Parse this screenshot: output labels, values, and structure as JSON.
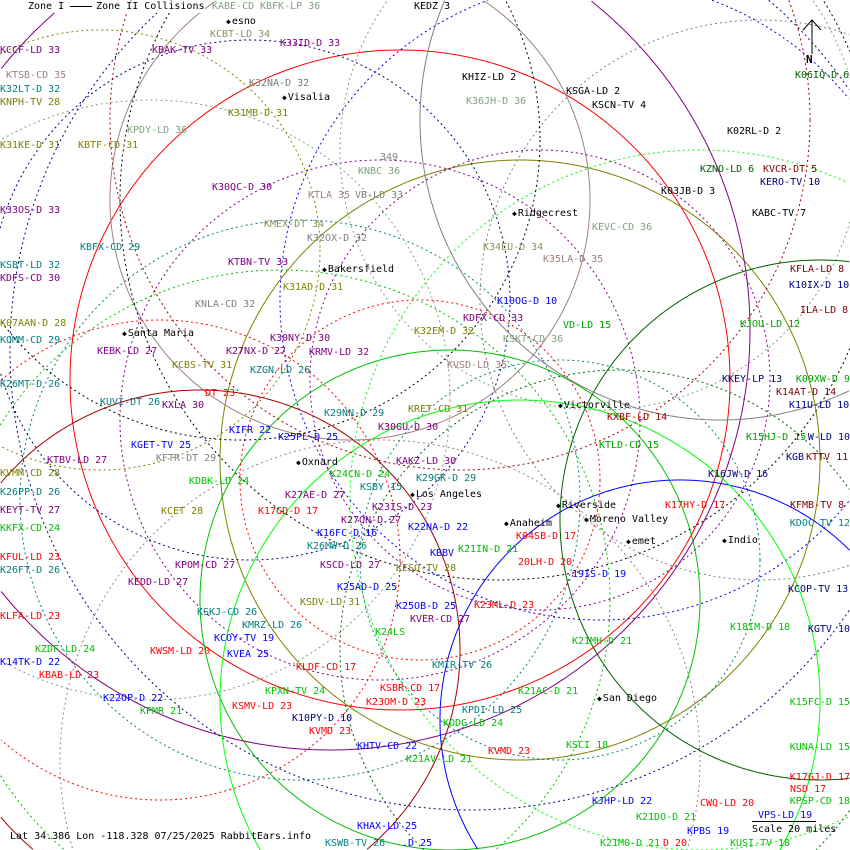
{
  "legend": {
    "zone1": "Zone I",
    "zone2": "Zone II Collisions"
  },
  "footer": {
    "location": "Lat 34.386 Lon -118.328 07/25/2025 RabbitEars.info",
    "scale": "Scale 20 miles",
    "north": "N"
  },
  "cities": [
    "esno",
    "Visalia",
    "Ridgecrest",
    "Bakersfield",
    "Santa Maria",
    "Victorville",
    "Oxnard",
    "Los Angeles",
    "Riverside",
    "Moreno Valley",
    "Anaheim",
    "emet",
    "Indio",
    "San Diego"
  ],
  "labels": [
    {
      "text": "KABE-CD",
      "color": "#80a080"
    },
    {
      "text": "KBFK-LP 36",
      "color": "#80a080"
    },
    {
      "text": "KEDZ 3",
      "color": "#000000"
    },
    {
      "text": "KCBT-LD 34",
      "color": "#909060"
    },
    {
      "text": "KCCF-LD 33",
      "color": "#800080"
    },
    {
      "text": "KBAK-TV 33",
      "color": "#800080"
    },
    {
      "text": "K33ID-D 33",
      "color": "#800080"
    },
    {
      "text": "KTSB-CD 35",
      "color": "#a08080"
    },
    {
      "text": "K32LT-D 32",
      "color": "#008080"
    },
    {
      "text": "KNPH-TV 28",
      "color": "#808000"
    },
    {
      "text": "K32NA-D 32",
      "color": "#708070"
    },
    {
      "text": "KHIZ-LD 2",
      "color": "#000000"
    },
    {
      "text": "KSGA-LD 2",
      "color": "#000000"
    },
    {
      "text": "KSCN-TV 4",
      "color": "#000000"
    },
    {
      "text": "K36JH-D 36",
      "color": "#80a080"
    },
    {
      "text": "K31MB-D 31",
      "color": "#808000"
    },
    {
      "text": "KPDY-LD 36",
      "color": "#80a080"
    },
    {
      "text": "K31KE-D 31",
      "color": "#808000"
    },
    {
      "text": "KBTF-CD 31",
      "color": "#808000"
    },
    {
      "text": "K02RL-D 2",
      "color": "#000000"
    },
    {
      "text": "349",
      "color": "#808080"
    },
    {
      "text": "KNBC 36",
      "color": "#80a080"
    },
    {
      "text": "KZNO-LD 6",
      "color": "#006000"
    },
    {
      "text": "KVCR-DT 5",
      "color": "#800000"
    },
    {
      "text": "KERO-TV 10",
      "color": "#000080"
    },
    {
      "text": "K30QC-D 30",
      "color": "#800080"
    },
    {
      "text": "KTLA 35",
      "color": "#a08080"
    },
    {
      "text": "VB-LD 33",
      "color": "#808080"
    },
    {
      "text": "K03JB-D 3",
      "color": "#000000"
    },
    {
      "text": "K33OS-D 33",
      "color": "#800080"
    },
    {
      "text": "KABC-TV 7",
      "color": "#000000"
    },
    {
      "text": "KMEX-DT 34",
      "color": "#909060"
    },
    {
      "text": "K32OX-D 32",
      "color": "#808080"
    },
    {
      "text": "KEVC-CD 36",
      "color": "#80a080"
    },
    {
      "text": "KBFX-CD 29",
      "color": "#008080"
    },
    {
      "text": "K34EU-D 34",
      "color": "#909060"
    },
    {
      "text": "K35LA-D 35",
      "color": "#a08080"
    },
    {
      "text": "KSBT-LD 32",
      "color": "#008080"
    },
    {
      "text": "KTBN-TV 33",
      "color": "#800080"
    },
    {
      "text": "KFLA-LD 8",
      "color": "#800000"
    },
    {
      "text": "KDFS-CD 30",
      "color": "#800080"
    },
    {
      "text": "K10IX-D 10",
      "color": "#000080"
    },
    {
      "text": "K31AD-D 31",
      "color": "#808000"
    },
    {
      "text": "KNLA-CD 32",
      "color": "#808080"
    },
    {
      "text": "K10OG-D 10",
      "color": "#0000ff"
    },
    {
      "text": "ILA-LD 8",
      "color": "#800000"
    },
    {
      "text": "KJOU-LD 12",
      "color": "#00a000"
    },
    {
      "text": "K07AAN-D 28",
      "color": "#808000"
    },
    {
      "text": "KDFX-CD 33",
      "color": "#800080"
    },
    {
      "text": "K32EM-D 32",
      "color": "#808000"
    },
    {
      "text": "KOMM-CD 29",
      "color": "#008080"
    },
    {
      "text": "K30NY-D 30",
      "color": "#800080"
    },
    {
      "text": "KSKT-CD 36",
      "color": "#80a080"
    },
    {
      "text": "VD-LD 15",
      "color": "#00a000"
    },
    {
      "text": "K27NX-D 27",
      "color": "#800080"
    },
    {
      "text": "KEBK-LD 27",
      "color": "#800080"
    },
    {
      "text": "KCBS-TV 31",
      "color": "#808000"
    },
    {
      "text": "KRMV-LD 32",
      "color": "#800080"
    },
    {
      "text": "KVSD-LD 35",
      "color": "#a08080"
    },
    {
      "text": "KZGN-LD 26",
      "color": "#008080"
    },
    {
      "text": "K26MT-D 26",
      "color": "#008080"
    },
    {
      "text": "KKEY-LP 13",
      "color": "#000080"
    },
    {
      "text": "K09XW-D 9",
      "color": "#00a000"
    },
    {
      "text": "K14AT-D 14",
      "color": "#800000"
    },
    {
      "text": "KUVI-DT 26",
      "color": "#008080"
    },
    {
      "text": "KXLA 30",
      "color": "#800080"
    },
    {
      "text": "DT 23",
      "color": "#ff0000"
    },
    {
      "text": "K11U-LD 10",
      "color": "#000080"
    },
    {
      "text": "KRET-CD 31",
      "color": "#808000"
    },
    {
      "text": "K29NN-D 29",
      "color": "#008080"
    },
    {
      "text": "KXBF-LD 14",
      "color": "#a00000"
    },
    {
      "text": "K30GU-D 30",
      "color": "#800080"
    },
    {
      "text": "KIFR 22",
      "color": "#0000ff"
    },
    {
      "text": "K25PL-D 25",
      "color": "#0000ff"
    },
    {
      "text": "K15HJ-D 15",
      "color": "#00a000"
    },
    {
      "text": "W-LD 10",
      "color": "#000080"
    },
    {
      "text": "KGET-TV 25",
      "color": "#0000ff"
    },
    {
      "text": "KTLD-CD 15",
      "color": "#00a000"
    },
    {
      "text": "KFTR-DT 29",
      "color": "#808080"
    },
    {
      "text": "KTBV-LD 27",
      "color": "#800080"
    },
    {
      "text": "KGB",
      "color": "#000080"
    },
    {
      "text": "KTTV 11",
      "color": "#800000"
    },
    {
      "text": "KAKZ-LD 30",
      "color": "#800080"
    },
    {
      "text": "K16JW-D 16",
      "color": "#000080"
    },
    {
      "text": "KVMM-CD 28",
      "color": "#808000"
    },
    {
      "text": "K29GK-D 29",
      "color": "#008080"
    },
    {
      "text": "K24CN-D 24",
      "color": "#00c000"
    },
    {
      "text": "KDBK-LD 24",
      "color": "#00c000"
    },
    {
      "text": "KSBY 15",
      "color": "#008080"
    },
    {
      "text": "K26PP-D 26",
      "color": "#008080"
    },
    {
      "text": "K27AE-D 27",
      "color": "#800080"
    },
    {
      "text": "KFMB-TV 8",
      "color": "#800000"
    },
    {
      "text": "KEYT-TV 27",
      "color": "#800080"
    },
    {
      "text": "K23IS-D 23",
      "color": "#800080"
    },
    {
      "text": "K17HY-D 17",
      "color": "#ff0000"
    },
    {
      "text": "KCET 28",
      "color": "#808000"
    },
    {
      "text": "K17GD-D 17",
      "color": "#ff0000"
    },
    {
      "text": "K04SB-D 17",
      "color": "#ff0000"
    },
    {
      "text": "K27ON-D 27",
      "color": "#800080"
    },
    {
      "text": "KDOC-TV 12",
      "color": "#008080"
    },
    {
      "text": "KKFX-CD 24",
      "color": "#00c000"
    },
    {
      "text": "K16FC-D 16",
      "color": "#0000ff"
    },
    {
      "text": "K22NA-D 22",
      "color": "#0000ff"
    },
    {
      "text": "K21IN-D 21",
      "color": "#00c000"
    },
    {
      "text": "K26MW-D 26",
      "color": "#008080"
    },
    {
      "text": "KBBV",
      "color": "#0000ff"
    },
    {
      "text": "20LH-D 20",
      "color": "#ff0000"
    },
    {
      "text": "19IS-D 19",
      "color": "#0000ff"
    },
    {
      "text": "KSCD-LD 27",
      "color": "#800080"
    },
    {
      "text": "KESQ-TV 28",
      "color": "#808000"
    },
    {
      "text": "KFUL-LD 23",
      "color": "#ff0000"
    },
    {
      "text": "K26FT-D 26",
      "color": "#008080"
    },
    {
      "text": "KPOM-CD 27",
      "color": "#800080"
    },
    {
      "text": "KEDD-LD 27",
      "color": "#800080"
    },
    {
      "text": "KCOP-TV 13",
      "color": "#000080"
    },
    {
      "text": "K25AD-D 25",
      "color": "#0000ff"
    },
    {
      "text": "KSDV-LD 31",
      "color": "#808000"
    },
    {
      "text": "KSKJ-CD 26",
      "color": "#008080"
    },
    {
      "text": "K25OB-D 25",
      "color": "#0000ff"
    },
    {
      "text": "K23ML-D 23",
      "color": "#ff0000"
    },
    {
      "text": "KVER-CD 27",
      "color": "#800080"
    },
    {
      "text": "KLFA-LD 23",
      "color": "#ff0000"
    },
    {
      "text": "KMRZ-LD 26",
      "color": "#008080"
    },
    {
      "text": "K24LS",
      "color": "#00c000"
    },
    {
      "text": "KCOY-TV 19",
      "color": "#0000ff"
    },
    {
      "text": "K21MH-D 21",
      "color": "#00c000"
    },
    {
      "text": "K18IM-D 18",
      "color": "#00c000"
    },
    {
      "text": "KGTV 10",
      "color": "#000080"
    },
    {
      "text": "KWSM-LD 20",
      "color": "#ff0000"
    },
    {
      "text": "KZDF-LD 24",
      "color": "#00c000"
    },
    {
      "text": "KVEA 25",
      "color": "#0000ff"
    },
    {
      "text": "K14TK-D 22",
      "color": "#0000ff"
    },
    {
      "text": "KMIR-TV 26",
      "color": "#008080"
    },
    {
      "text": "KLDF-CD 17",
      "color": "#ff0000"
    },
    {
      "text": "KBAB-LD 23",
      "color": "#ff0000"
    },
    {
      "text": "KPXN-TV 24",
      "color": "#00c000"
    },
    {
      "text": "KSBR-CD 17",
      "color": "#ff0000"
    },
    {
      "text": "K21AC-D 21",
      "color": "#00c000"
    },
    {
      "text": "K22OP-D 22",
      "color": "#0000ff"
    },
    {
      "text": "K23OM-D 23",
      "color": "#ff0000"
    },
    {
      "text": "K15FC-D 15",
      "color": "#00c000"
    },
    {
      "text": "KPMR 21",
      "color": "#00c000"
    },
    {
      "text": "KSMV-LD 23",
      "color": "#ff0000"
    },
    {
      "text": "KPDI-LD 25",
      "color": "#008080"
    },
    {
      "text": "K10PY-D 10",
      "color": "#000080"
    },
    {
      "text": "KODG-LD 24",
      "color": "#00c000"
    },
    {
      "text": "KVMD 23",
      "color": "#ff0000"
    },
    {
      "text": "KSCI 18",
      "color": "#00c000"
    },
    {
      "text": "KHTV-CD 22",
      "color": "#0000ff"
    },
    {
      "text": "KUNA-LD 15",
      "color": "#00c000"
    },
    {
      "text": "KVMD 23",
      "color": "#ff0000"
    },
    {
      "text": "K21AV-LD 21",
      "color": "#00c000"
    },
    {
      "text": "K17GJ-D 17",
      "color": "#ff0000"
    },
    {
      "text": "KJHP-LD 22",
      "color": "#0000ff"
    },
    {
      "text": "KPSP-CD 18",
      "color": "#00c000"
    },
    {
      "text": "K21DO-D 21",
      "color": "#00c000"
    },
    {
      "text": "CWQ-LD 20",
      "color": "#ff0000"
    },
    {
      "text": "VPS-LD 19",
      "color": "#0000ff"
    },
    {
      "text": "KHAX-LD 25",
      "color": "#0000ff"
    },
    {
      "text": "KSWB-TV 26",
      "color": "#008080"
    },
    {
      "text": ".D 25",
      "color": "#0000ff"
    },
    {
      "text": "K21MO-D 21",
      "color": "#00c000"
    },
    {
      "text": "D 20",
      "color": "#ff0000"
    },
    {
      "text": "KPBS 19",
      "color": "#0000ff"
    },
    {
      "text": "KUSI-TV 18",
      "color": "#00c000"
    },
    {
      "text": "NSD 17",
      "color": "#ff0000"
    },
    {
      "text": "K06IQ-D 6",
      "color": "#006000"
    }
  ]
}
